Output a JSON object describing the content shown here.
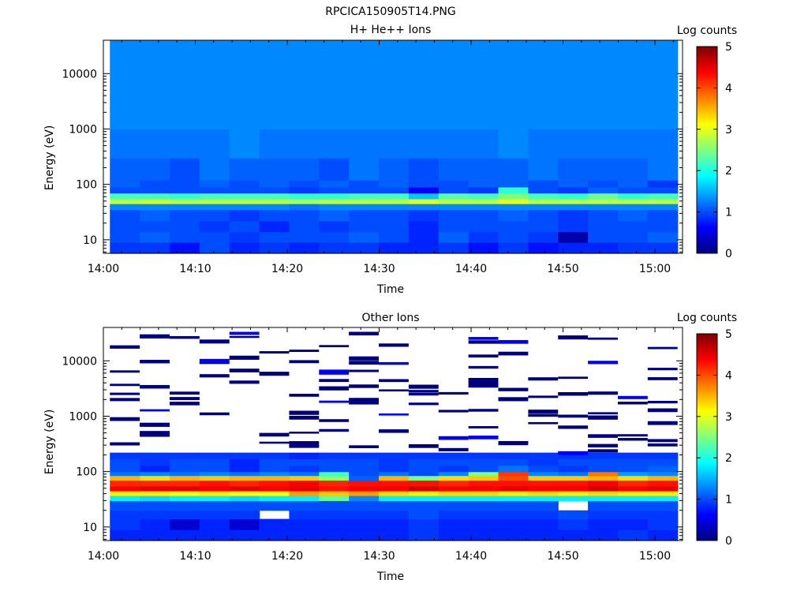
{
  "figure_title": "RPCICA150905T14.PNG",
  "colormap": [
    "#00007f",
    "#0000ff",
    "#007fff",
    "#00ffff",
    "#7fff7f",
    "#ffff00",
    "#ff7f00",
    "#ff0000",
    "#7f0000"
  ],
  "chart_data": [
    {
      "type": "heatmap",
      "title": "H+ He++ Ions",
      "xlabel": "Time",
      "ylabel": "Energy (eV)",
      "xlim": [
        "14:00",
        "15:03"
      ],
      "ylim": [
        5.7,
        40000
      ],
      "yscale": "log",
      "x_ticks": [
        "14:00",
        "14:10",
        "14:20",
        "14:30",
        "14:40",
        "14:50",
        "15:00"
      ],
      "y_ticks": [
        "10",
        "100",
        "1000",
        "10000"
      ],
      "colorbar": {
        "label": "Log counts",
        "range": [
          0,
          5
        ],
        "ticks": [
          "0",
          "1",
          "2",
          "3",
          "4",
          "5"
        ]
      },
      "time_bins": [
        "14:02:20",
        "14:05:35",
        "14:08:50",
        "14:12:05",
        "14:15:20",
        "14:18:35",
        "14:21:50",
        "14:25:05",
        "14:28:20",
        "14:31:35",
        "14:34:50",
        "14:38:05",
        "14:41:20",
        "14:44:35",
        "14:47:50",
        "14:51:05",
        "14:54:20",
        "14:57:35",
        "15:00:50"
      ],
      "energy_bands": [
        {
          "e_min": 5.7,
          "e_max": 9,
          "log_counts": [
            0.9,
            0.9,
            0.7,
            1.0,
            0.8,
            0.9,
            0.8,
            0.9,
            0.9,
            0.8,
            0.8,
            0.9,
            0.7,
            0.9,
            0.7,
            0.8,
            0.8,
            0.9,
            0.9
          ]
        },
        {
          "e_min": 9,
          "e_max": 14,
          "log_counts": [
            1.0,
            1.1,
            1.0,
            1.0,
            0.9,
            1.0,
            1.0,
            1.0,
            1.1,
            1.0,
            0.8,
            1.1,
            0.9,
            1.0,
            0.9,
            0.2,
            1.0,
            1.0,
            1.1
          ]
        },
        {
          "e_min": 14,
          "e_max": 22,
          "log_counts": [
            1.0,
            1.0,
            1.0,
            0.9,
            1.0,
            0.8,
            1.0,
            0.9,
            1.0,
            1.0,
            0.8,
            1.0,
            1.0,
            1.0,
            1.0,
            0.9,
            1.0,
            1.0,
            1.0
          ]
        },
        {
          "e_min": 22,
          "e_max": 35,
          "log_counts": [
            1.0,
            1.1,
            1.0,
            1.0,
            0.9,
            1.0,
            1.0,
            1.1,
            1.0,
            1.0,
            0.9,
            1.0,
            1.0,
            1.1,
            1.0,
            0.9,
            1.0,
            1.1,
            1.0
          ]
        },
        {
          "e_min": 35,
          "e_max": 45,
          "log_counts": [
            1.3,
            1.3,
            1.3,
            1.3,
            1.3,
            1.3,
            1.2,
            1.3,
            1.3,
            1.3,
            1.3,
            1.3,
            1.3,
            1.3,
            1.3,
            1.3,
            1.3,
            1.3,
            1.3
          ]
        },
        {
          "e_min": 45,
          "e_max": 55,
          "log_counts": [
            2.8,
            2.9,
            2.8,
            2.8,
            2.8,
            2.8,
            2.7,
            2.8,
            2.8,
            2.8,
            3.0,
            2.8,
            2.8,
            3.0,
            2.8,
            2.8,
            2.8,
            2.8,
            2.8
          ]
        },
        {
          "e_min": 55,
          "e_max": 70,
          "log_counts": [
            2.2,
            2.2,
            2.1,
            2.2,
            2.2,
            2.2,
            2.1,
            2.1,
            2.2,
            2.2,
            1.6,
            2.3,
            2.2,
            2.5,
            2.2,
            2.1,
            2.4,
            2.1,
            2.2
          ]
        },
        {
          "e_min": 70,
          "e_max": 90,
          "log_counts": [
            1.0,
            1.0,
            1.0,
            1.0,
            1.0,
            1.0,
            0.9,
            1.0,
            1.0,
            1.0,
            0.6,
            1.0,
            0.9,
            2.1,
            1.0,
            0.9,
            1.1,
            1.0,
            1.0
          ]
        },
        {
          "e_min": 90,
          "e_max": 120,
          "log_counts": [
            1.1,
            1.0,
            1.0,
            1.1,
            1.0,
            1.1,
            1.0,
            1.1,
            1.0,
            1.1,
            1.0,
            1.0,
            1.1,
            1.1,
            1.0,
            1.1,
            1.0,
            1.1,
            0.9
          ]
        },
        {
          "e_min": 120,
          "e_max": 300,
          "log_counts": [
            1.1,
            1.1,
            1.0,
            1.2,
            1.1,
            1.1,
            1.1,
            1.0,
            1.2,
            1.1,
            1.0,
            1.1,
            1.1,
            1.1,
            1.2,
            1.1,
            1.1,
            1.1,
            1.2
          ]
        },
        {
          "e_min": 300,
          "e_max": 1000,
          "log_counts": [
            1.2,
            1.2,
            1.2,
            1.2,
            1.3,
            1.2,
            1.2,
            1.2,
            1.2,
            1.2,
            1.2,
            1.2,
            1.2,
            1.3,
            1.2,
            1.2,
            1.2,
            1.2,
            1.2
          ]
        },
        {
          "e_min": 1000,
          "e_max": 4000,
          "log_counts": [
            1.3,
            1.3,
            1.3,
            1.3,
            1.3,
            1.3,
            1.3,
            1.3,
            1.3,
            1.3,
            1.3,
            1.3,
            1.3,
            1.3,
            1.3,
            1.3,
            1.3,
            1.3,
            1.3
          ]
        },
        {
          "e_min": 4000,
          "e_max": 40000,
          "log_counts": [
            1.3,
            1.3,
            1.3,
            1.3,
            1.3,
            1.3,
            1.3,
            1.3,
            1.3,
            1.3,
            1.3,
            1.3,
            1.3,
            1.3,
            1.3,
            1.3,
            1.3,
            1.3,
            1.3
          ]
        }
      ]
    },
    {
      "type": "heatmap",
      "title": "Other Ions",
      "xlabel": "Time",
      "ylabel": "Energy (eV)",
      "xlim": [
        "14:00",
        "15:03"
      ],
      "ylim": [
        5.7,
        40000
      ],
      "yscale": "log",
      "x_ticks": [
        "14:00",
        "14:10",
        "14:20",
        "14:30",
        "14:40",
        "14:50",
        "15:00"
      ],
      "y_ticks": [
        "10",
        "100",
        "1000",
        "10000"
      ],
      "colorbar": {
        "label": "Log counts",
        "range": [
          0,
          5
        ],
        "ticks": [
          "0",
          "1",
          "2",
          "3",
          "4",
          "5"
        ]
      },
      "time_bins": [
        "14:02:20",
        "14:05:35",
        "14:08:50",
        "14:12:05",
        "14:15:20",
        "14:18:35",
        "14:21:50",
        "14:25:05",
        "14:28:20",
        "14:31:35",
        "14:34:50",
        "14:38:05",
        "14:41:20",
        "14:44:35",
        "14:47:50",
        "14:51:05",
        "14:54:20",
        "14:57:35",
        "15:00:50"
      ],
      "energy_bands": [
        {
          "e_min": 5.7,
          "e_max": 9,
          "log_counts": [
            0.8,
            0.8,
            0.8,
            0.8,
            0.8,
            0.8,
            0.8,
            0.8,
            0.8,
            0.8,
            0.9,
            0.8,
            0.8,
            0.8,
            0.8,
            0.8,
            0.8,
            0.9,
            0.8
          ]
        },
        {
          "e_min": 9,
          "e_max": 14,
          "log_counts": [
            0.9,
            0.8,
            0.4,
            0.8,
            0.4,
            0.8,
            0.8,
            0.8,
            0.8,
            0.8,
            0.9,
            0.8,
            0.8,
            0.8,
            0.8,
            0.9,
            0.8,
            0.8,
            0.9
          ]
        },
        {
          "e_min": 14,
          "e_max": 20,
          "log_counts": [
            0.9,
            0.9,
            0.9,
            0.9,
            0.9,
            null,
            0.9,
            0.9,
            0.9,
            0.9,
            1.0,
            0.9,
            0.9,
            0.9,
            0.9,
            1.0,
            0.9,
            0.9,
            0.9
          ]
        },
        {
          "e_min": 20,
          "e_max": 30,
          "log_counts": [
            1.0,
            1.0,
            1.0,
            1.0,
            1.0,
            1.0,
            1.0,
            1.0,
            1.0,
            1.0,
            1.0,
            1.0,
            1.0,
            1.0,
            1.0,
            null,
            1.0,
            1.0,
            1.0
          ]
        },
        {
          "e_min": 30,
          "e_max": 37,
          "log_counts": [
            1.8,
            1.7,
            1.8,
            1.8,
            1.7,
            1.8,
            1.8,
            2.3,
            1.3,
            1.8,
            1.8,
            1.8,
            1.8,
            1.8,
            1.8,
            1.8,
            1.8,
            1.8,
            1.8
          ]
        },
        {
          "e_min": 37,
          "e_max": 45,
          "log_counts": [
            3.2,
            3.2,
            3.1,
            3.2,
            3.1,
            3.1,
            3.6,
            3.4,
            3.6,
            3.3,
            3.2,
            3.3,
            3.3,
            3.2,
            3.3,
            3.2,
            3.3,
            3.2,
            3.2
          ]
        },
        {
          "e_min": 45,
          "e_max": 55,
          "log_counts": [
            4.4,
            4.5,
            4.5,
            4.4,
            4.5,
            4.4,
            4.5,
            4.3,
            4.4,
            4.4,
            4.6,
            4.4,
            4.4,
            4.5,
            4.4,
            4.4,
            4.6,
            4.4,
            4.5
          ]
        },
        {
          "e_min": 55,
          "e_max": 70,
          "log_counts": [
            4.2,
            4.2,
            4.2,
            4.3,
            4.2,
            4.3,
            4.4,
            4.2,
            4.3,
            4.3,
            4.3,
            4.2,
            4.3,
            4.3,
            4.3,
            4.3,
            4.4,
            4.2,
            4.3
          ]
        },
        {
          "e_min": 70,
          "e_max": 85,
          "log_counts": [
            3.5,
            3.3,
            3.5,
            3.4,
            3.5,
            3.5,
            3.4,
            2.6,
            1.1,
            3.5,
            2.5,
            3.3,
            3.4,
            4.0,
            3.4,
            3.4,
            3.5,
            3.3,
            3.5
          ]
        },
        {
          "e_min": 85,
          "e_max": 100,
          "log_counts": [
            1.2,
            1.3,
            1.2,
            1.3,
            1.2,
            1.3,
            1.2,
            2.2,
            1.0,
            1.2,
            1.0,
            1.3,
            2.5,
            4.1,
            1.3,
            1.2,
            3.8,
            1.4,
            1.3
          ]
        },
        {
          "e_min": 100,
          "e_max": 130,
          "log_counts": [
            1.0,
            0.8,
            1.0,
            1.0,
            0.8,
            1.0,
            0.9,
            1.0,
            1.0,
            0.9,
            1.0,
            0.9,
            1.0,
            1.2,
            1.0,
            0.9,
            1.0,
            1.0,
            1.1
          ]
        },
        {
          "e_min": 130,
          "e_max": 170,
          "log_counts": [
            1.0,
            0.9,
            1.0,
            1.0,
            0.8,
            1.0,
            1.0,
            1.0,
            1.0,
            0.9,
            1.0,
            1.0,
            1.0,
            1.0,
            0.9,
            1.0,
            1.0,
            1.0,
            1.0
          ]
        },
        {
          "e_min": 170,
          "e_max": 220,
          "log_counts": [
            0.9,
            0.9,
            0.9,
            0.9,
            0.9,
            0.9,
            0.8,
            0.9,
            0.9,
            0.9,
            0.9,
            0.9,
            0.9,
            0.9,
            0.9,
            0.9,
            0.9,
            0.9,
            0.9
          ]
        }
      ],
      "sparse_counts_above_220eV": "isolated single-count pixels (log counts ≈ 0.1–0.3) up to ~35000 eV"
    }
  ]
}
